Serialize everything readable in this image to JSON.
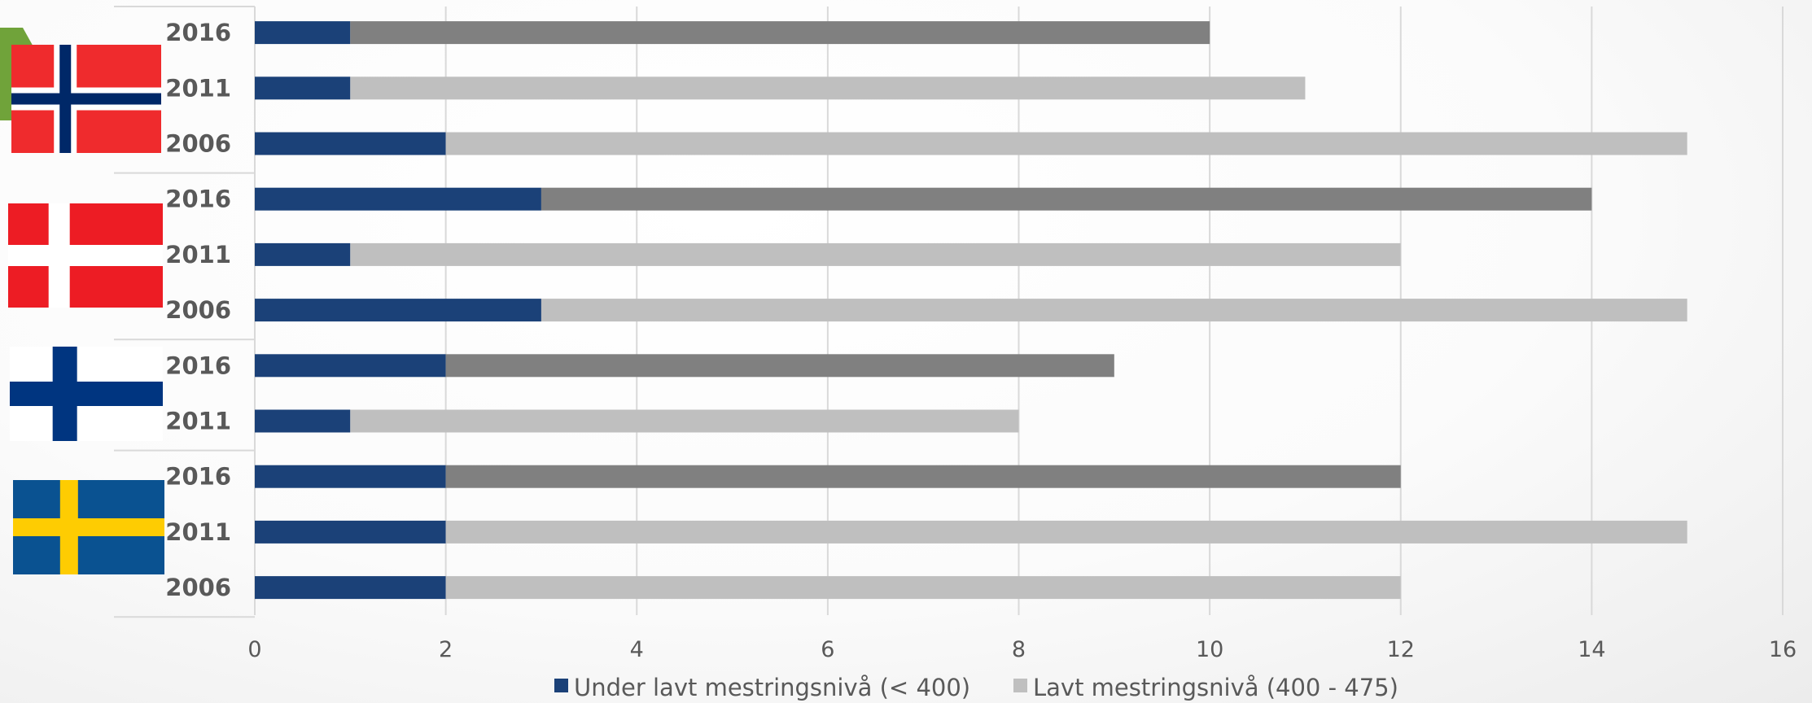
{
  "chart_data": {
    "type": "bar",
    "orientation": "horizontal",
    "stacked": true,
    "xlim": [
      0,
      16
    ],
    "xticks": [
      0,
      2,
      4,
      6,
      8,
      10,
      12,
      14,
      16
    ],
    "grid": true,
    "legend_position": "bottom",
    "groups": [
      {
        "flag": "norway-flag-icon",
        "categories": [
          "2016",
          "2011",
          "2006"
        ]
      },
      {
        "flag": "denmark-flag-icon",
        "categories": [
          "2016",
          "2011",
          "2006"
        ]
      },
      {
        "flag": "finland-flag-icon",
        "categories": [
          "2016",
          "2011"
        ]
      },
      {
        "flag": "sweden-flag-icon",
        "categories": [
          "2016",
          "2011",
          "2006"
        ]
      }
    ],
    "categories": [
      "2016",
      "2011",
      "2006",
      "2016",
      "2011",
      "2006",
      "2016",
      "2011",
      "2016",
      "2011",
      "2006"
    ],
    "series": [
      {
        "name": "Under lavt mestringsnivå (< 400)",
        "color": "#1b4178",
        "values": [
          1,
          1,
          2,
          3,
          1,
          3,
          2,
          1,
          2,
          2,
          2
        ]
      },
      {
        "name": "Lavt mestringsnivå (400 - 475)",
        "color": "#bfbfbf",
        "values": [
          9,
          10,
          13,
          11,
          11,
          12,
          7,
          7,
          10,
          13,
          10
        ]
      }
    ],
    "highlight_color": "#808080"
  }
}
